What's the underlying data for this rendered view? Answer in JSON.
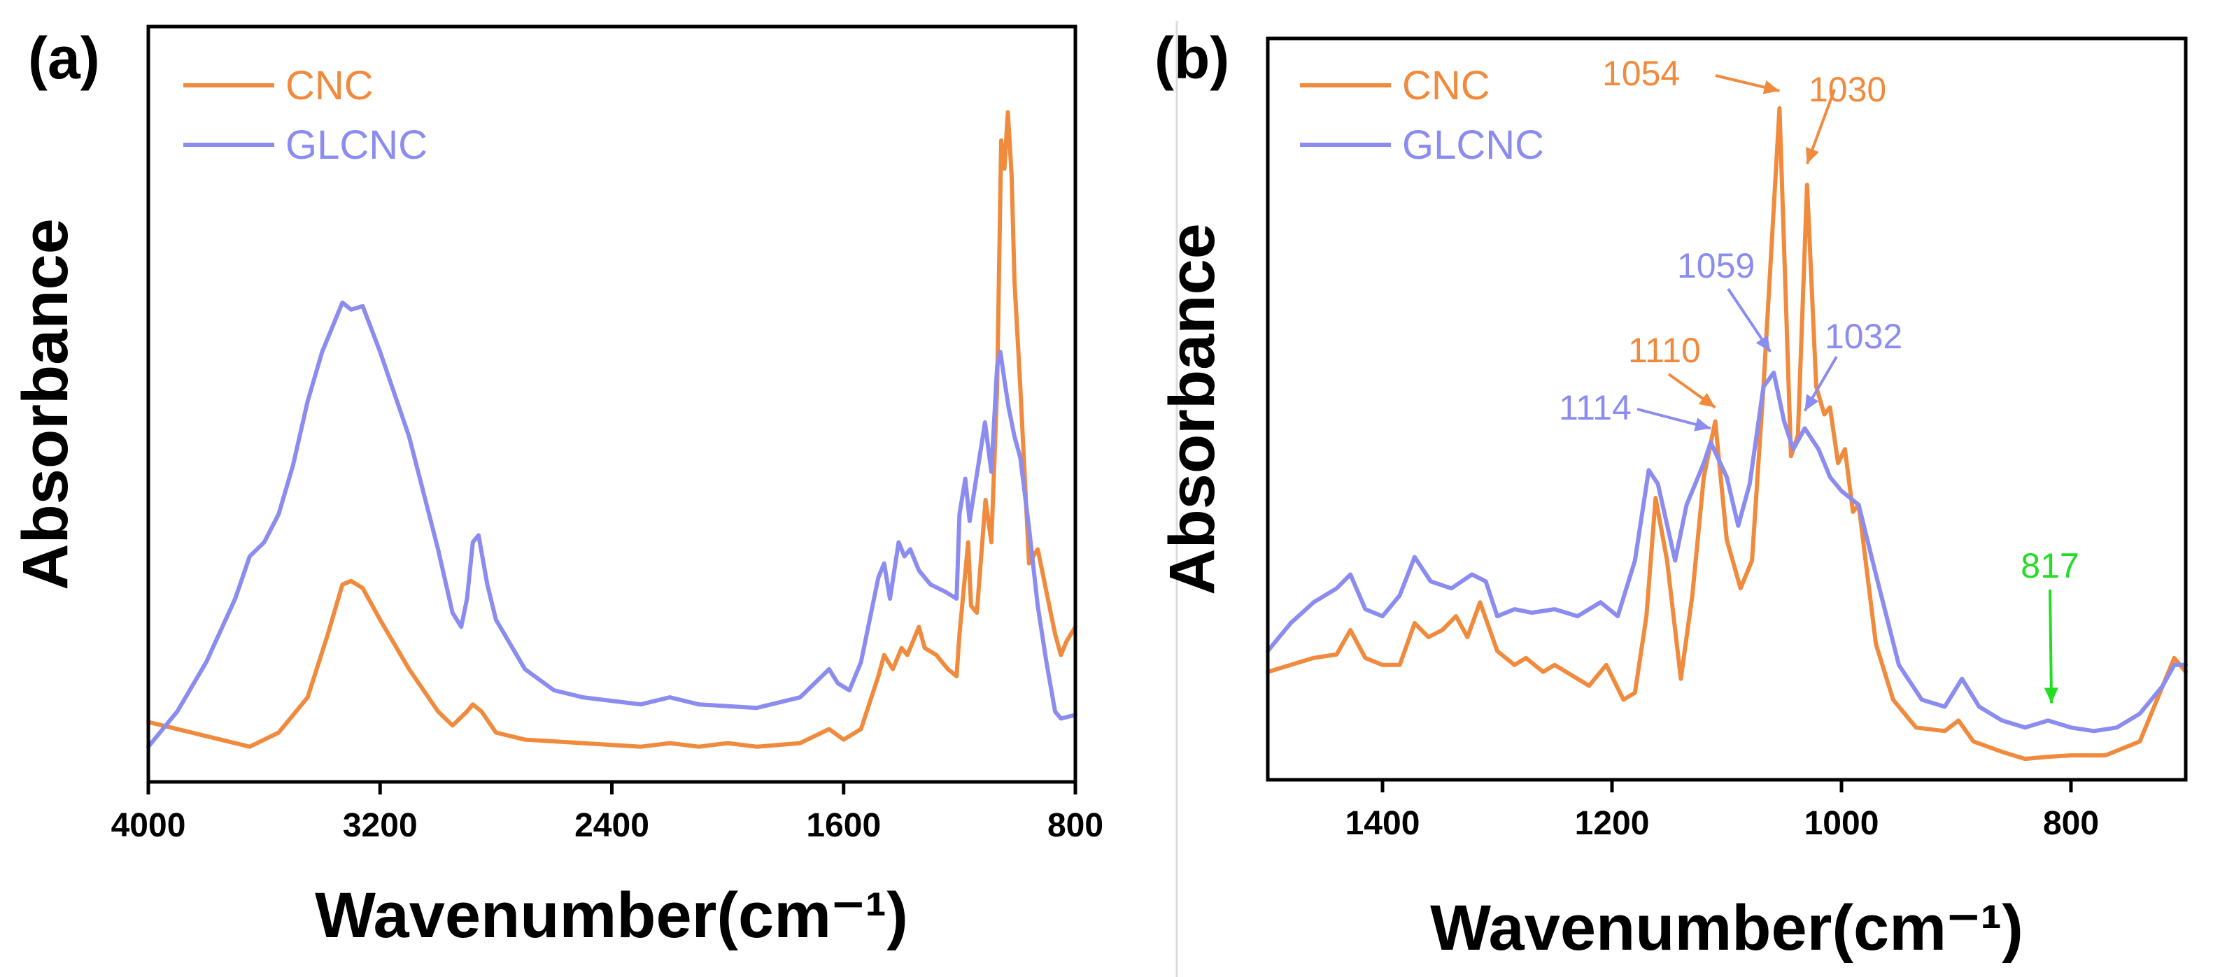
{
  "colors": {
    "CNC": "#F08A3C",
    "GLCNC": "#8A8CF0",
    "marker817": "#22DD22",
    "axis": "#000000"
  },
  "chart_data": [
    {
      "panel": "(a)",
      "type": "line",
      "xlabel": "Wavenumber(cm⁻¹)",
      "ylabel": "Absorbance",
      "xlim": [
        4000,
        800
      ],
      "ylim": [
        0,
        1
      ],
      "xticks": [
        4000,
        3200,
        2400,
        1600,
        800
      ],
      "xtick_labels": [
        "4000",
        "3200",
        "2400",
        "1600",
        "800"
      ],
      "legend": [
        "CNC",
        "GLCNC"
      ],
      "legend_position": "top-left",
      "series": [
        {
          "name": "CNC",
          "points": [
            [
              4000,
              0.075
            ],
            [
              3800,
              0.055
            ],
            [
              3650,
              0.04
            ],
            [
              3550,
              0.06
            ],
            [
              3450,
              0.11
            ],
            [
              3380,
              0.2
            ],
            [
              3330,
              0.27
            ],
            [
              3300,
              0.275
            ],
            [
              3260,
              0.265
            ],
            [
              3200,
              0.22
            ],
            [
              3100,
              0.15
            ],
            [
              3000,
              0.09
            ],
            [
              2950,
              0.07
            ],
            [
              2900,
              0.09
            ],
            [
              2880,
              0.1
            ],
            [
              2850,
              0.09
            ],
            [
              2800,
              0.06
            ],
            [
              2700,
              0.05
            ],
            [
              2500,
              0.045
            ],
            [
              2300,
              0.04
            ],
            [
              2200,
              0.045
            ],
            [
              2100,
              0.04
            ],
            [
              2000,
              0.045
            ],
            [
              1900,
              0.04
            ],
            [
              1750,
              0.045
            ],
            [
              1650,
              0.065
            ],
            [
              1600,
              0.05
            ],
            [
              1540,
              0.065
            ],
            [
              1480,
              0.14
            ],
            [
              1460,
              0.17
            ],
            [
              1430,
              0.15
            ],
            [
              1400,
              0.18
            ],
            [
              1380,
              0.17
            ],
            [
              1340,
              0.21
            ],
            [
              1320,
              0.18
            ],
            [
              1280,
              0.17
            ],
            [
              1240,
              0.15
            ],
            [
              1210,
              0.14
            ],
            [
              1200,
              0.2
            ],
            [
              1170,
              0.33
            ],
            [
              1160,
              0.24
            ],
            [
              1140,
              0.23
            ],
            [
              1110,
              0.39
            ],
            [
              1090,
              0.33
            ],
            [
              1070,
              0.55
            ],
            [
              1056,
              0.9
            ],
            [
              1045,
              0.86
            ],
            [
              1033,
              0.94
            ],
            [
              1020,
              0.85
            ],
            [
              1010,
              0.7
            ],
            [
              990,
              0.55
            ],
            [
              960,
              0.3
            ],
            [
              930,
              0.32
            ],
            [
              900,
              0.26
            ],
            [
              870,
              0.2
            ],
            [
              850,
              0.17
            ],
            [
              830,
              0.19
            ],
            [
              800,
              0.21
            ]
          ]
        },
        {
          "name": "GLCNC",
          "points": [
            [
              4000,
              0.04
            ],
            [
              3900,
              0.09
            ],
            [
              3800,
              0.16
            ],
            [
              3700,
              0.25
            ],
            [
              3650,
              0.31
            ],
            [
              3600,
              0.33
            ],
            [
              3550,
              0.37
            ],
            [
              3500,
              0.44
            ],
            [
              3450,
              0.53
            ],
            [
              3400,
              0.6
            ],
            [
              3360,
              0.64
            ],
            [
              3330,
              0.67
            ],
            [
              3300,
              0.66
            ],
            [
              3260,
              0.665
            ],
            [
              3200,
              0.6
            ],
            [
              3100,
              0.48
            ],
            [
              3000,
              0.32
            ],
            [
              2950,
              0.23
            ],
            [
              2920,
              0.21
            ],
            [
              2900,
              0.25
            ],
            [
              2880,
              0.33
            ],
            [
              2860,
              0.34
            ],
            [
              2830,
              0.27
            ],
            [
              2800,
              0.22
            ],
            [
              2700,
              0.15
            ],
            [
              2600,
              0.12
            ],
            [
              2500,
              0.11
            ],
            [
              2300,
              0.1
            ],
            [
              2200,
              0.11
            ],
            [
              2100,
              0.1
            ],
            [
              1900,
              0.095
            ],
            [
              1750,
              0.11
            ],
            [
              1650,
              0.15
            ],
            [
              1620,
              0.13
            ],
            [
              1580,
              0.12
            ],
            [
              1540,
              0.16
            ],
            [
              1480,
              0.28
            ],
            [
              1460,
              0.3
            ],
            [
              1440,
              0.25
            ],
            [
              1410,
              0.33
            ],
            [
              1390,
              0.31
            ],
            [
              1370,
              0.32
            ],
            [
              1340,
              0.29
            ],
            [
              1300,
              0.27
            ],
            [
              1250,
              0.26
            ],
            [
              1210,
              0.25
            ],
            [
              1200,
              0.37
            ],
            [
              1180,
              0.42
            ],
            [
              1165,
              0.36
            ],
            [
              1150,
              0.4
            ],
            [
              1112,
              0.5
            ],
            [
              1090,
              0.43
            ],
            [
              1070,
              0.58
            ],
            [
              1059,
              0.6
            ],
            [
              1045,
              0.56
            ],
            [
              1030,
              0.52
            ],
            [
              1010,
              0.48
            ],
            [
              990,
              0.45
            ],
            [
              960,
              0.35
            ],
            [
              930,
              0.24
            ],
            [
              900,
              0.16
            ],
            [
              870,
              0.09
            ],
            [
              850,
              0.08
            ],
            [
              800,
              0.085
            ]
          ]
        }
      ]
    },
    {
      "panel": "(b)",
      "type": "line",
      "xlabel": "Wavenumber(cm⁻¹)",
      "ylabel": "Absorbance",
      "xlim": [
        1500,
        700
      ],
      "ylim": [
        0,
        1
      ],
      "xticks": [
        1400,
        1200,
        1000,
        800
      ],
      "xtick_labels": [
        "1400",
        "1200",
        "1000",
        "800"
      ],
      "legend": [
        "CNC",
        "GLCNC"
      ],
      "legend_position": "top-left",
      "series": [
        {
          "name": "CNC",
          "points": [
            [
              1500,
              0.14
            ],
            [
              1480,
              0.15
            ],
            [
              1460,
              0.16
            ],
            [
              1440,
              0.165
            ],
            [
              1428,
              0.2
            ],
            [
              1415,
              0.16
            ],
            [
              1400,
              0.15
            ],
            [
              1385,
              0.15
            ],
            [
              1372,
              0.21
            ],
            [
              1360,
              0.19
            ],
            [
              1348,
              0.2
            ],
            [
              1336,
              0.22
            ],
            [
              1326,
              0.19
            ],
            [
              1315,
              0.24
            ],
            [
              1300,
              0.17
            ],
            [
              1285,
              0.15
            ],
            [
              1275,
              0.16
            ],
            [
              1260,
              0.14
            ],
            [
              1250,
              0.15
            ],
            [
              1240,
              0.14
            ],
            [
              1220,
              0.12
            ],
            [
              1205,
              0.15
            ],
            [
              1190,
              0.1
            ],
            [
              1180,
              0.11
            ],
            [
              1170,
              0.22
            ],
            [
              1162,
              0.39
            ],
            [
              1152,
              0.3
            ],
            [
              1140,
              0.13
            ],
            [
              1130,
              0.25
            ],
            [
              1120,
              0.42
            ],
            [
              1110,
              0.5
            ],
            [
              1100,
              0.33
            ],
            [
              1088,
              0.26
            ],
            [
              1078,
              0.3
            ],
            [
              1068,
              0.55
            ],
            [
              1054,
              0.95
            ],
            [
              1044,
              0.45
            ],
            [
              1038,
              0.48
            ],
            [
              1030,
              0.84
            ],
            [
              1022,
              0.55
            ],
            [
              1015,
              0.51
            ],
            [
              1010,
              0.52
            ],
            [
              1003,
              0.44
            ],
            [
              997,
              0.46
            ],
            [
              990,
              0.37
            ],
            [
              985,
              0.38
            ],
            [
              970,
              0.18
            ],
            [
              955,
              0.1
            ],
            [
              935,
              0.06
            ],
            [
              910,
              0.055
            ],
            [
              898,
              0.07
            ],
            [
              885,
              0.04
            ],
            [
              860,
              0.025
            ],
            [
              840,
              0.015
            ],
            [
              820,
              0.018
            ],
            [
              800,
              0.02
            ],
            [
              770,
              0.02
            ],
            [
              740,
              0.04
            ],
            [
              720,
              0.12
            ],
            [
              710,
              0.16
            ],
            [
              700,
              0.14
            ]
          ]
        },
        {
          "name": "GLCNC",
          "points": [
            [
              1500,
              0.17
            ],
            [
              1480,
              0.21
            ],
            [
              1460,
              0.24
            ],
            [
              1440,
              0.26
            ],
            [
              1428,
              0.28
            ],
            [
              1415,
              0.23
            ],
            [
              1400,
              0.22
            ],
            [
              1385,
              0.25
            ],
            [
              1372,
              0.305
            ],
            [
              1358,
              0.27
            ],
            [
              1340,
              0.26
            ],
            [
              1322,
              0.28
            ],
            [
              1310,
              0.27
            ],
            [
              1300,
              0.22
            ],
            [
              1285,
              0.23
            ],
            [
              1270,
              0.225
            ],
            [
              1250,
              0.23
            ],
            [
              1230,
              0.22
            ],
            [
              1210,
              0.24
            ],
            [
              1195,
              0.22
            ],
            [
              1180,
              0.3
            ],
            [
              1168,
              0.43
            ],
            [
              1160,
              0.41
            ],
            [
              1145,
              0.3
            ],
            [
              1135,
              0.38
            ],
            [
              1120,
              0.44
            ],
            [
              1114,
              0.47
            ],
            [
              1100,
              0.42
            ],
            [
              1090,
              0.35
            ],
            [
              1080,
              0.41
            ],
            [
              1068,
              0.55
            ],
            [
              1059,
              0.57
            ],
            [
              1050,
              0.5
            ],
            [
              1042,
              0.46
            ],
            [
              1032,
              0.49
            ],
            [
              1020,
              0.46
            ],
            [
              1010,
              0.42
            ],
            [
              1000,
              0.4
            ],
            [
              985,
              0.38
            ],
            [
              970,
              0.28
            ],
            [
              950,
              0.15
            ],
            [
              930,
              0.1
            ],
            [
              910,
              0.09
            ],
            [
              895,
              0.13
            ],
            [
              880,
              0.09
            ],
            [
              860,
              0.07
            ],
            [
              840,
              0.06
            ],
            [
              820,
              0.07
            ],
            [
              800,
              0.06
            ],
            [
              780,
              0.055
            ],
            [
              760,
              0.06
            ],
            [
              740,
              0.08
            ],
            [
              720,
              0.12
            ],
            [
              710,
              0.15
            ],
            [
              700,
              0.15
            ]
          ]
        }
      ],
      "annotations": [
        {
          "label": "1054",
          "series": "CNC"
        },
        {
          "label": "1030",
          "series": "CNC"
        },
        {
          "label": "1110",
          "series": "CNC"
        },
        {
          "label": "1059",
          "series": "GLCNC"
        },
        {
          "label": "1032",
          "series": "GLCNC"
        },
        {
          "label": "1114",
          "series": "GLCNC"
        },
        {
          "label": "817",
          "series": "marker"
        }
      ]
    }
  ]
}
